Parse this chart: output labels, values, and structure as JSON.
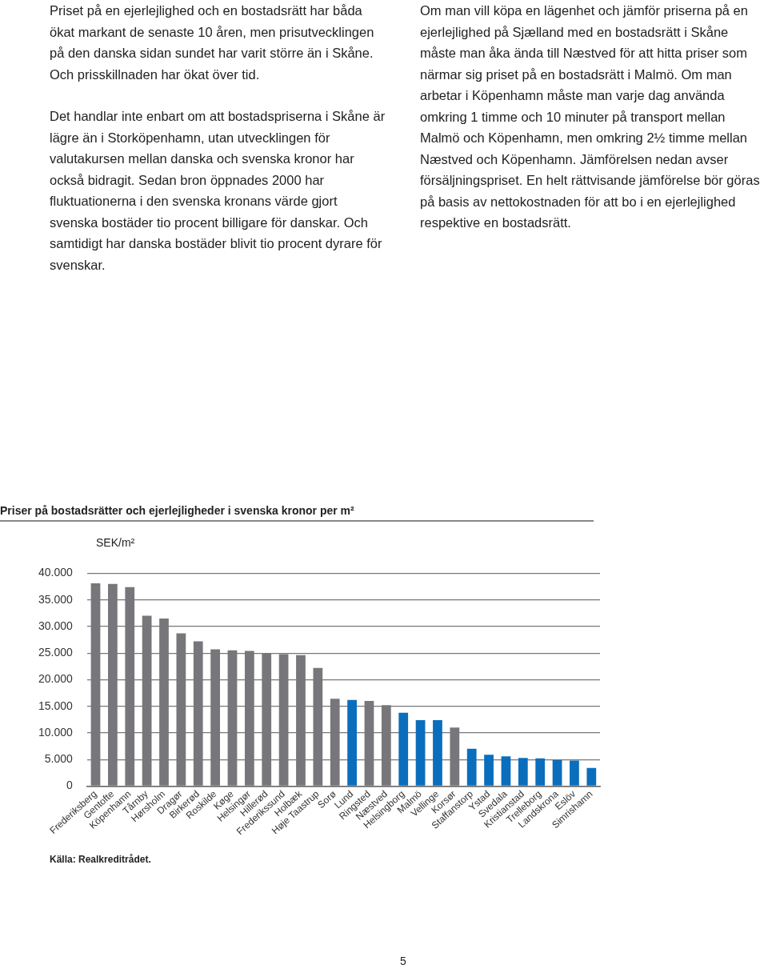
{
  "chart_data": {
    "type": "bar",
    "title": "Priser på bostadsrätter och ejerlejligheder i svenska kronor per m²",
    "ylabel": "SEK/m²",
    "categories": [
      "Frederiksberg",
      "Gentofte",
      "Köpenhamn",
      "Tårnby",
      "Hørsholm",
      "Dragør",
      "Birkerød",
      "Roskilde",
      "Køge",
      "Helsingør",
      "Hillerød",
      "Frederikssund",
      "Holbæk",
      "Høje Taastrup",
      "Sorø",
      "Lund",
      "Ringsted",
      "Næstved",
      "Helsingborg",
      "Malmö",
      "Vellinge",
      "Korsør",
      "Staffanstorp",
      "Ystad",
      "Svedala",
      "Kristianstad",
      "Trelleborg",
      "Landskrona",
      "Eslöv",
      "Simrishamn"
    ],
    "values": [
      38100,
      38000,
      37400,
      32000,
      31500,
      28700,
      27200,
      25700,
      25500,
      25400,
      25000,
      24800,
      24600,
      22200,
      16400,
      16200,
      16000,
      15200,
      13800,
      12400,
      12400,
      11000,
      7000,
      5900,
      5600,
      5300,
      5200,
      4900,
      4800,
      3400
    ],
    "colors": [
      "#77777b",
      "#77777b",
      "#77777b",
      "#77777b",
      "#77777b",
      "#77777b",
      "#77777b",
      "#77777b",
      "#77777b",
      "#77777b",
      "#77777b",
      "#77777b",
      "#77777b",
      "#77777b",
      "#77777b",
      "#0a6ebd",
      "#77777b",
      "#77777b",
      "#0a6ebd",
      "#0a6ebd",
      "#0a6ebd",
      "#77777b",
      "#0a6ebd",
      "#0a6ebd",
      "#0a6ebd",
      "#0a6ebd",
      "#0a6ebd",
      "#0a6ebd",
      "#0a6ebd",
      "#0a6ebd"
    ],
    "ylim": [
      0,
      40000
    ],
    "yticks": [
      0,
      {
        "value": 5000,
        "label": "5.000"
      },
      {
        "value": 10000,
        "label": "10.000"
      },
      {
        "value": 15000,
        "label": "15.000"
      },
      {
        "value": 20000,
        "label": "20.000"
      },
      {
        "value": 25000,
        "label": "25.000"
      },
      {
        "value": 30000,
        "label": "30.000"
      },
      {
        "value": 35000,
        "label": "35.000"
      },
      {
        "value": 40000,
        "label": "40.000"
      }
    ],
    "grid": "y",
    "annotations": [
      "Priset på en ejerlejlighed och en bostadsrätt har båda ökat markant de senaste 10 åren, men prisutvecklingen på den danska sidan sundet har varit större än i Skåne. Och prisskillnaden har ökat över tid.",
      "Det handlar inte enbart om att bostadspriserna i Skåne är lägre än i Storköpenhamn, utan utvecklingen för valutakursen mellan danska och svenska kronor har också bidragit. Sedan bron öppnades 2000 har fluktuationerna i den svenska kronans värde gjort svenska bostäder tio procent billigare för danskar. Och samtidigt har danska bostäder blivit tio procent dyrare för svenskar.",
      "Om man vill köpa en lägenhet och jämför priserna på en ejerlejlighed på Sjælland med en bostadsrätt i Skåne måste man åka ända till Næstved för att hitta priser som närmar sig priset på en bostadsrätt i Malmö. Om man arbetar i Köpenhamn måste man varje dag använda omkring 1 timme och 10 minuter på transport mellan Malmö och Köpenhamn, men omkring 2½ timme mellan Næstved och Köpenhamn. Jämförelsen nedan avser försäljningspriset. En helt rättvisande jämförelse bör göras på basis av nettokostnaden för att bo i en ejerlejlighed respektive en bostadsrätt.",
      "Källa: Realkreditrådet.",
      "5"
    ]
  }
}
